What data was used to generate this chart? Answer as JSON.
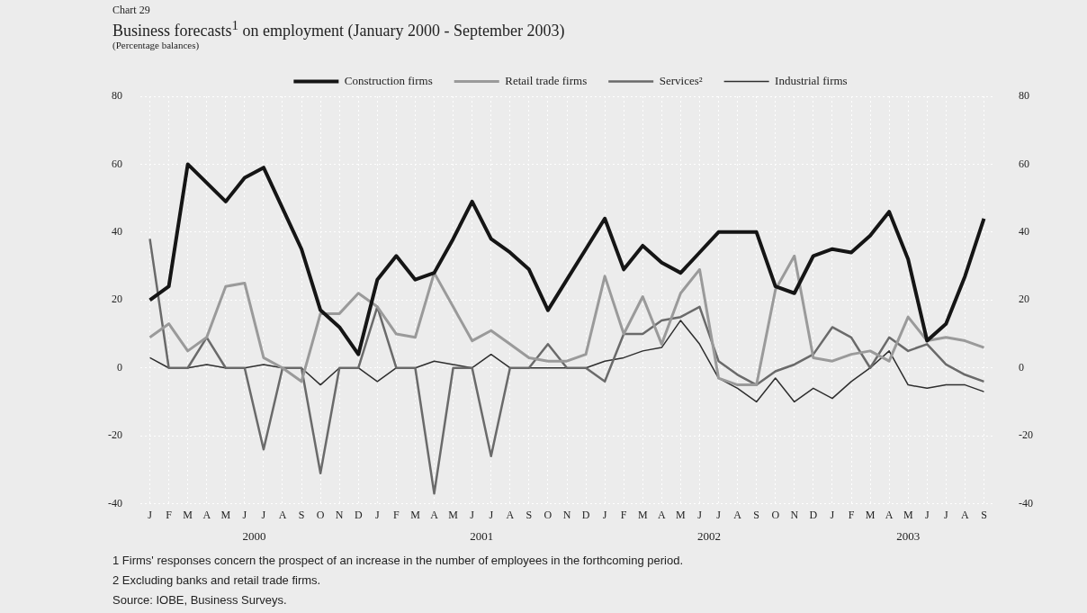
{
  "chart_data": {
    "type": "line",
    "title": "Business forecasts$^{1}$ on employment (January 2000 - September 2003)",
    "subtitle": "(Percentage balances)",
    "categories": [
      "J",
      "F",
      "M",
      "A",
      "M",
      "J",
      "J",
      "A",
      "S",
      "O",
      "N",
      "D",
      "J",
      "F",
      "M",
      "A",
      "M",
      "J",
      "J",
      "A",
      "S",
      "O",
      "N",
      "D",
      "J",
      "F",
      "M",
      "A",
      "M",
      "J",
      "J",
      "A",
      "S",
      "O",
      "N",
      "D",
      "J",
      "F",
      "M",
      "A",
      "M",
      "J",
      "J",
      "A",
      "S"
    ],
    "series": [
      {
        "name": "Construction firms",
        "color": "#151515",
        "values": [
          20,
          24,
          60,
          54.5,
          49,
          56,
          59,
          47,
          35,
          17,
          12,
          4,
          26,
          33,
          26,
          28,
          38,
          49,
          38,
          34,
          29,
          17,
          26,
          35,
          44,
          29,
          36,
          31,
          28,
          34,
          40,
          40,
          40,
          24,
          22,
          33,
          35,
          34,
          39,
          46,
          32,
          8,
          13,
          27,
          44
        ]
      },
      {
        "name": "Retail trade firms",
        "color": "#9a9a9a",
        "values": [
          9,
          13,
          5,
          9,
          24,
          25,
          3,
          0,
          -4,
          16,
          16,
          22,
          18,
          10,
          9,
          28,
          18,
          8,
          11,
          7,
          3,
          2,
          2,
          4,
          27,
          10,
          21,
          7,
          22,
          29,
          -3,
          -5,
          -5,
          23,
          33,
          3,
          2,
          4,
          5,
          2,
          15,
          8,
          9,
          8,
          6
        ]
      },
      {
        "name": "Services²",
        "color": "#6a6a6a",
        "values": [
          38,
          0,
          0,
          9,
          0,
          0,
          -24,
          0,
          0,
          -31,
          0,
          0,
          18,
          0,
          0,
          -37,
          0,
          0,
          -26,
          0,
          0,
          7,
          0,
          0,
          -4,
          10,
          10,
          14,
          15,
          18,
          2,
          -2,
          -5,
          -1,
          1,
          4,
          12,
          9,
          0,
          9,
          5,
          7,
          1,
          -2,
          -4
        ]
      },
      {
        "name": "Industrial firms",
        "color": "#2e2e2e",
        "values": [
          3,
          0,
          0,
          1,
          0,
          0,
          1,
          0,
          0,
          -5,
          0,
          0,
          -4,
          0,
          0,
          2,
          1,
          0,
          4,
          0,
          0,
          0,
          0,
          0,
          2,
          3,
          5,
          6,
          14,
          7,
          -3,
          -6,
          -10,
          -3,
          -10,
          -6,
          -9,
          -4,
          0,
          5,
          -5,
          -6,
          -5,
          -5,
          -7
        ]
      }
    ],
    "ylim": [
      -40,
      80
    ],
    "yticks": [
      -40,
      -20,
      0,
      20,
      40,
      60,
      80
    ],
    "y2lim": [
      -40,
      80
    ],
    "y2ticks": [
      -40,
      -20,
      0,
      20,
      40,
      60,
      80
    ],
    "grid": true,
    "legend": "top",
    "marker": "none",
    "line_style": "solid",
    "annotations": [
      "Chart 29",
      "2000",
      "2001",
      "2002",
      "2003",
      "1 Firms' responses concern the prospect of an increase in the number of employees in the forthcoming period.",
      "2 Excluding banks and retail trade firms.",
      "Source: IOBE, Business Surveys."
    ]
  }
}
